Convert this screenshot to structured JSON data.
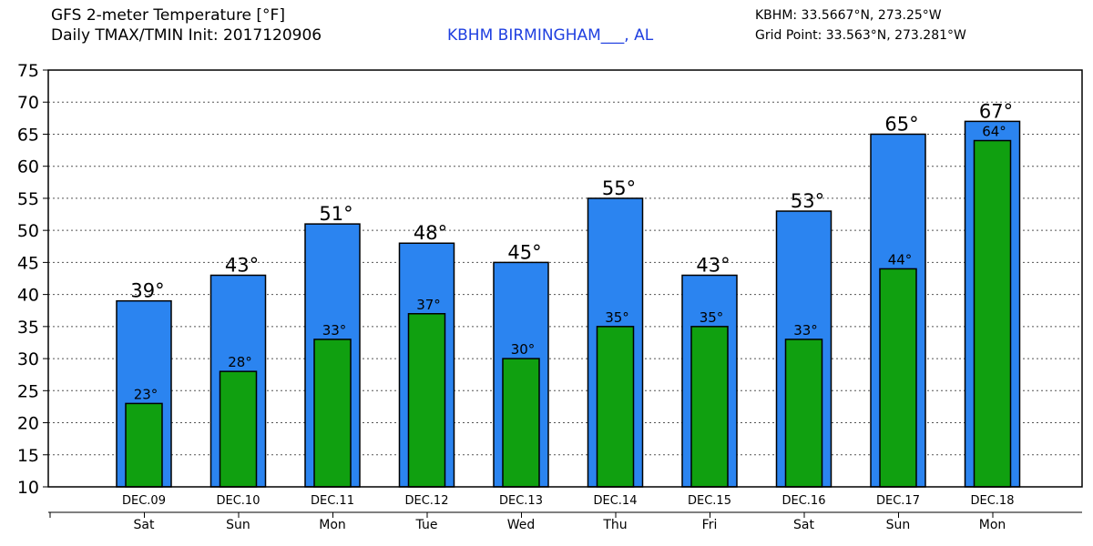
{
  "header": {
    "title_line1": "GFS 2-meter Temperature [°F]",
    "title_line2": "Daily TMAX/TMIN Init: 2017120906",
    "station": "KBHM BIRMINGHAM___, AL",
    "station_coords": "KBHM: 33.5667°N, 273.25°W",
    "grid_point": "Grid Point: 33.563°N, 273.281°W"
  },
  "colors": {
    "tmax": "#2b84f0",
    "tmin": "#10a010",
    "grid": "#555555"
  },
  "chart_data": {
    "type": "bar",
    "title": "GFS 2-meter Temperature [°F]",
    "subtitle": "Daily TMAX/TMIN Init: 2017120906",
    "categories": [
      "DEC.09",
      "DEC.10",
      "DEC.11",
      "DEC.12",
      "DEC.13",
      "DEC.14",
      "DEC.15",
      "DEC.16",
      "DEC.17",
      "DEC.18"
    ],
    "weekdays": [
      "Sat",
      "Sun",
      "Mon",
      "Tue",
      "Wed",
      "Thu",
      "Fri",
      "Sat",
      "Sun",
      "Mon"
    ],
    "series": [
      {
        "name": "TMAX",
        "values": [
          39,
          43,
          51,
          48,
          45,
          55,
          43,
          53,
          65,
          67
        ],
        "labels": [
          "39°",
          "43°",
          "51°",
          "48°",
          "45°",
          "55°",
          "43°",
          "53°",
          "65°",
          "67°"
        ]
      },
      {
        "name": "TMIN",
        "values": [
          23,
          28,
          33,
          37,
          30,
          35,
          35,
          33,
          44,
          64
        ],
        "labels": [
          "23°",
          "28°",
          "33°",
          "37°",
          "30°",
          "35°",
          "35°",
          "33°",
          "44°",
          "64°"
        ]
      }
    ],
    "ylim": [
      10,
      75
    ],
    "yticks": [
      "10",
      "15",
      "20",
      "25",
      "30",
      "35",
      "40",
      "45",
      "50",
      "55",
      "60",
      "65",
      "70",
      "75"
    ],
    "grid": true
  }
}
